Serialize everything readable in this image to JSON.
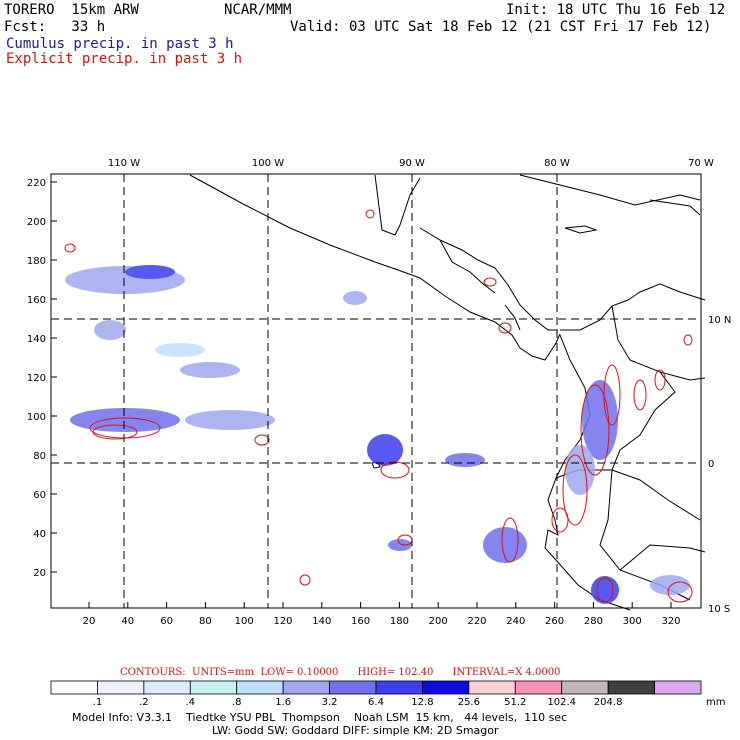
{
  "header": {
    "model": "TORERO  15km ARW",
    "org": "NCAR/MMM",
    "init": "Init: 18 UTC Thu 16 Feb 12",
    "fcst": "Fcst:   33 h",
    "valid": "Valid: 03 UTC Sat 18 Feb 12 (21 CST Fri 17 Feb 12)",
    "legend_cumulus": "Cumulus precip. in past 3 h",
    "legend_explicit": "Explicit precip. in past 3 h"
  },
  "axes": {
    "top_lon_labels": [
      "110 W",
      "100 W",
      "90 W",
      "80 W",
      "70 W"
    ],
    "right_lat_labels": [
      "10 N",
      "0",
      "10 S"
    ],
    "y_grid_ticks": [
      "220",
      "200",
      "180",
      "160",
      "140",
      "120",
      "100",
      "80",
      "60",
      "40",
      "20"
    ],
    "x_grid_ticks": [
      "20",
      "40",
      "60",
      "80",
      "100",
      "120",
      "140",
      "160",
      "180",
      "200",
      "220",
      "240",
      "260",
      "280",
      "300",
      "320"
    ]
  },
  "contour_info": {
    "contours": "CONTOURS:",
    "units": "UNITS=mm",
    "low": "LOW= 0.10000",
    "high": "HIGH= 102.40",
    "interval": "INTERVAL=X 4.0000"
  },
  "colorbar": {
    "unit": "mm",
    "colors": [
      "#ffffff",
      "#f0f0ff",
      "#dcecff",
      "#c8f0f0",
      "#c0e0ff",
      "#9fa8f0",
      "#7070f0",
      "#3c3cf0",
      "#0a0ae0",
      "#ffd0d8",
      "#ff90b8",
      "#c0b8b8",
      "#404040",
      "#d8a8f0"
    ],
    "labels": [
      ".1",
      ".2",
      ".4",
      ".8",
      "1.6",
      "3.2",
      "6.4",
      "12.8",
      "25.6",
      "51.2",
      "102.4",
      "204.8"
    ]
  },
  "footer": {
    "line1": "Model Info: V3.3.1    Tiedtke YSU PBL  Thompson    Noah LSM  15 km,   44 levels,  110 sec",
    "line2": "LW: Godd SW: Goddard DIFF: simple KM: 2D Smagor"
  }
}
